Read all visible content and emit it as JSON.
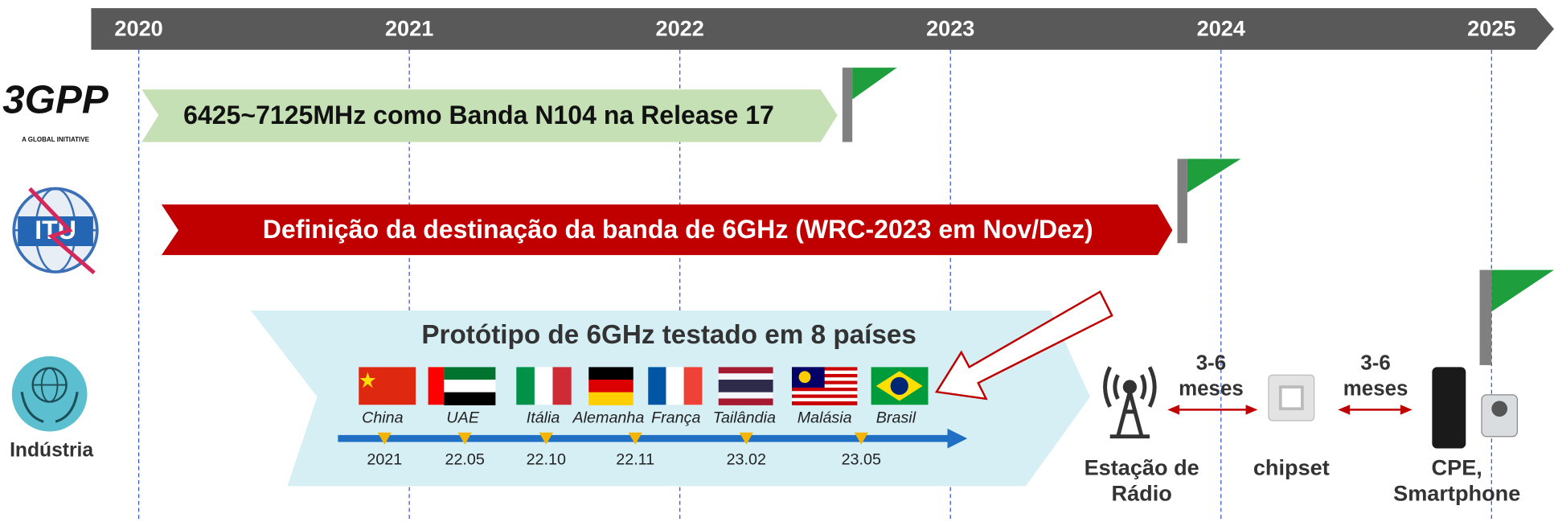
{
  "timeline": {
    "years": [
      "2020",
      "2021",
      "2022",
      "2023",
      "2024",
      "2025"
    ]
  },
  "rows": [
    {
      "logo": "3GPP",
      "logo_subtitle": "A GLOBAL INITIATIVE",
      "label": "6425~7125MHz como Banda N104 na Release 17"
    },
    {
      "logo": "ITU",
      "label": "Definição da destinação da banda de 6GHz (WRC-2023 em Nov/Dez)"
    },
    {
      "logo": "Indústria"
    }
  ],
  "prototype": {
    "title": "Protótipo de 6GHz testado em 8 países",
    "countries": [
      {
        "name": "China",
        "date": "2021"
      },
      {
        "name": "UAE",
        "date": "22.05"
      },
      {
        "name": "Itália",
        "date": "22.10"
      },
      {
        "name": "Alemanha",
        "date": "22.11"
      },
      {
        "name": "França"
      },
      {
        "name": "Tailândia",
        "date": "23.02"
      },
      {
        "name": "Malásia",
        "date": "23.05"
      },
      {
        "name": "Brasil"
      }
    ]
  },
  "devices": [
    {
      "label": [
        "Estação de",
        "Rádio"
      ]
    },
    {
      "label": [
        "chipset"
      ]
    },
    {
      "label": [
        "CPE,",
        "Smartphone"
      ]
    }
  ],
  "intervals": [
    {
      "label": [
        "3-6",
        "meses"
      ]
    },
    {
      "label": [
        "3-6",
        "meses"
      ]
    }
  ]
}
